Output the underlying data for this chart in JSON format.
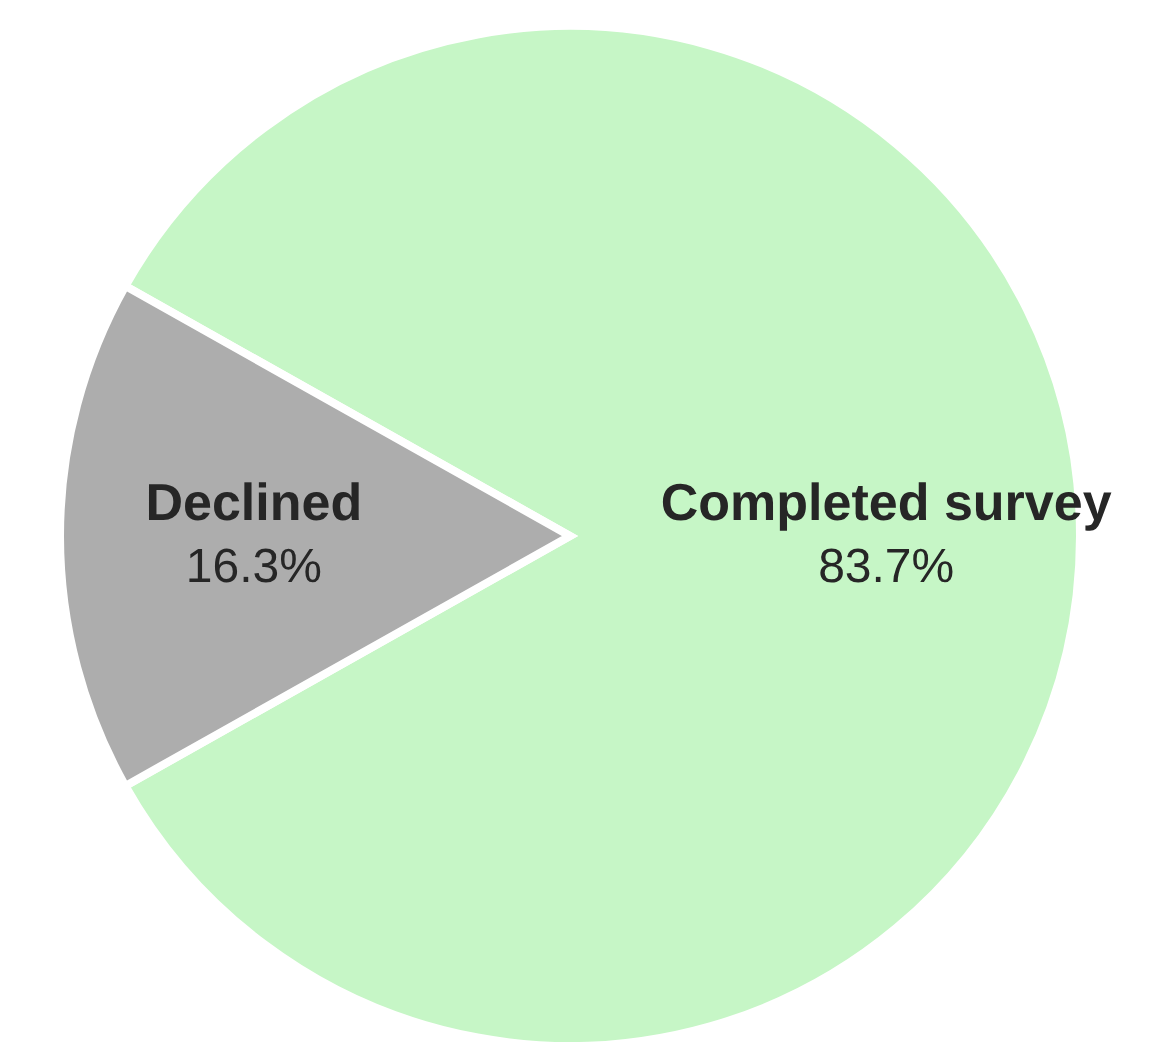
{
  "chart_data": {
    "type": "pie",
    "categories": [
      "Completed survey",
      "Declined"
    ],
    "values": [
      83.7,
      16.3
    ],
    "colors": [
      "#c6f6c6",
      "#adadad"
    ],
    "value_labels": [
      "83.7%",
      "16.3%"
    ],
    "legend": false
  }
}
